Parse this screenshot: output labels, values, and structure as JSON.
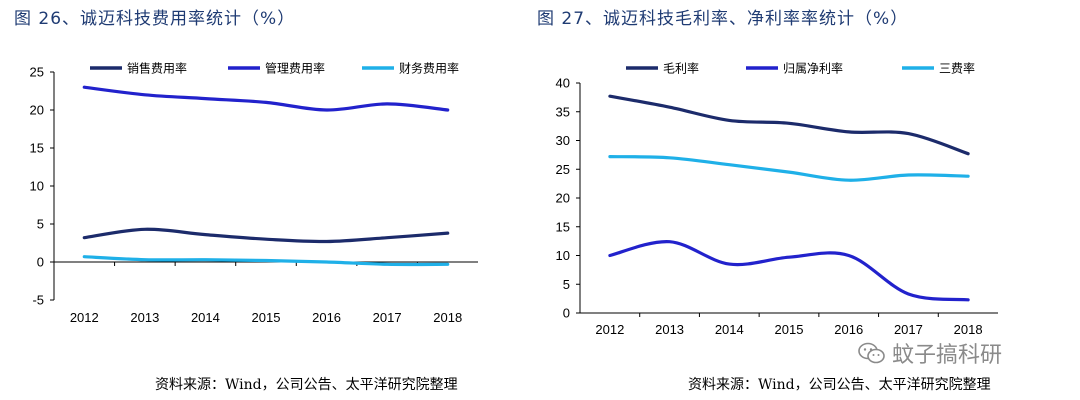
{
  "figures": {
    "left_title": "图 26、诚迈科技费用率统计（%）",
    "right_title": "图 27、诚迈科技毛利率、净利率率统计（%）",
    "left_source": "资料来源：Wind，公司公告、太平洋研究院整理",
    "right_source": "资料来源：Wind，公司公告、太平洋研究院整理"
  },
  "watermark": {
    "text": "蚊子搞科研",
    "icon": "wechat-icon"
  },
  "chart_data": [
    {
      "type": "line",
      "title": "图 26、诚迈科技费用率统计（%）",
      "x": [
        "2012",
        "2013",
        "2014",
        "2015",
        "2016",
        "2017",
        "2018"
      ],
      "yticks": [
        "25",
        "20",
        "15",
        "10",
        "5",
        "0",
        "-5"
      ],
      "ylim": [
        -5,
        25
      ],
      "grid": false,
      "legend_position": "top",
      "series": [
        {
          "name": "销售费用率",
          "color": "#1c2b6b",
          "values": [
            3.2,
            4.3,
            3.6,
            3.0,
            2.7,
            3.2,
            3.8
          ]
        },
        {
          "name": "管理费用率",
          "color": "#2222cc",
          "values": [
            23.0,
            22.0,
            21.5,
            21.0,
            20.0,
            20.8,
            20.0
          ]
        },
        {
          "name": "财务费用率",
          "color": "#1fb0e8",
          "values": [
            0.7,
            0.3,
            0.3,
            0.2,
            0.0,
            -0.3,
            -0.3
          ]
        }
      ]
    },
    {
      "type": "line",
      "title": "图 27、诚迈科技毛利率、净利率率统计（%）",
      "x": [
        "2012",
        "2013",
        "2014",
        "2015",
        "2016",
        "2017",
        "2018"
      ],
      "yticks": [
        "40",
        "35",
        "30",
        "25",
        "20",
        "15",
        "10",
        "5",
        "0"
      ],
      "ylim": [
        0,
        40
      ],
      "grid": false,
      "legend_position": "top",
      "series": [
        {
          "name": "毛利率",
          "color": "#1c2b6b",
          "values": [
            37.7,
            35.8,
            33.5,
            33.0,
            31.5,
            31.2,
            27.7
          ]
        },
        {
          "name": "归属净利率",
          "color": "#2222cc",
          "values": [
            10.0,
            12.4,
            8.5,
            9.7,
            10.0,
            3.3,
            2.3
          ]
        },
        {
          "name": "三费率",
          "color": "#1fb0e8",
          "values": [
            27.2,
            27.0,
            25.8,
            24.5,
            23.1,
            24.0,
            23.8
          ]
        }
      ]
    }
  ]
}
